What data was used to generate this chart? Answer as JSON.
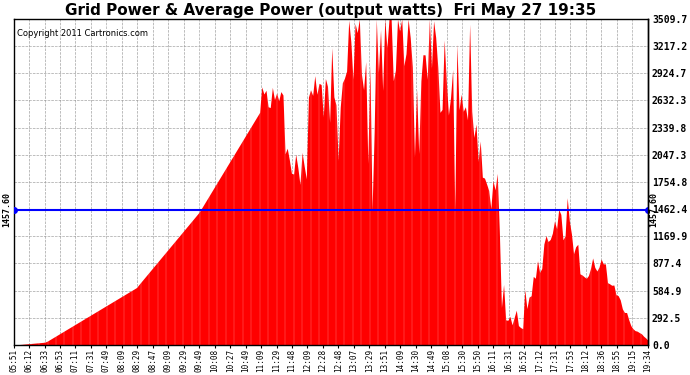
{
  "title": "Grid Power & Average Power (output watts)  Fri May 27 19:35",
  "copyright": "Copyright 2011 Cartronics.com",
  "avg_power": 1457.6,
  "avg_label": "1457.60",
  "y_max": 3509.7,
  "y_min": 0.0,
  "y_ticks": [
    0.0,
    292.5,
    584.9,
    877.4,
    1169.9,
    1462.4,
    1754.8,
    2047.3,
    2339.8,
    2632.3,
    2924.7,
    3217.2,
    3509.7
  ],
  "background_color": "#ffffff",
  "bar_color": "#ff0000",
  "avg_line_color": "#0000ff",
  "grid_color": "#999999",
  "title_fontsize": 11,
  "x_labels": [
    "05:51",
    "06:12",
    "06:33",
    "06:53",
    "07:11",
    "07:31",
    "07:49",
    "08:09",
    "08:29",
    "08:47",
    "09:09",
    "09:29",
    "09:49",
    "10:08",
    "10:27",
    "10:49",
    "11:09",
    "11:29",
    "11:48",
    "12:09",
    "12:28",
    "12:48",
    "13:07",
    "13:29",
    "13:51",
    "14:09",
    "14:30",
    "14:49",
    "15:08",
    "15:30",
    "15:50",
    "16:11",
    "16:31",
    "16:52",
    "17:12",
    "17:31",
    "17:53",
    "18:12",
    "18:36",
    "18:55",
    "19:15",
    "19:34"
  ],
  "n_bars": 300,
  "seed": 77
}
